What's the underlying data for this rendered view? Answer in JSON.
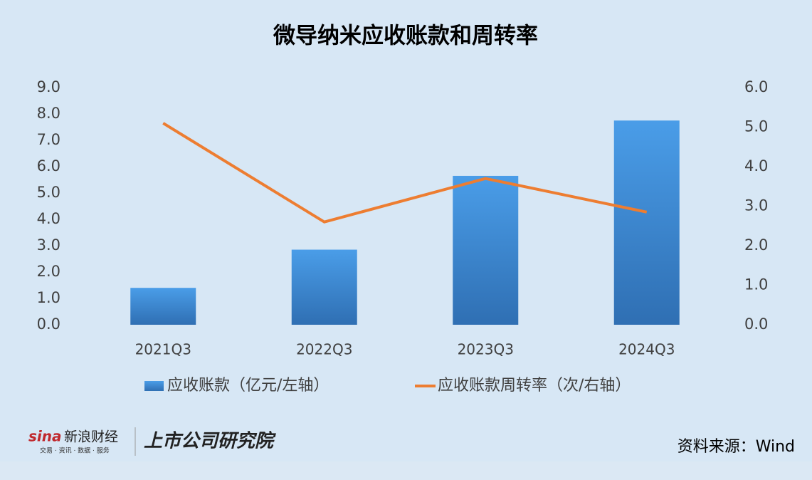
{
  "chart_data": {
    "type": "bar_line",
    "title": "微导纳米应收账款和周转率",
    "categories": [
      "2021Q3",
      "2022Q3",
      "2023Q3",
      "2024Q3"
    ],
    "series": [
      {
        "name": "应收账款（亿元/左轴）",
        "type": "bar",
        "color": "#3d8ad8",
        "values": [
          1.4,
          2.85,
          5.65,
          7.75
        ]
      },
      {
        "name": "应收账款周转率（次/右轴）",
        "type": "line",
        "axis": "y2",
        "color": "#ed7d31",
        "values": [
          5.1,
          2.6,
          3.7,
          2.85
        ]
      }
    ],
    "ylim": [
      0,
      9
    ],
    "yticks": [
      {
        "value": 0,
        "label": "0.0"
      },
      {
        "value": 1,
        "label": "1.0"
      },
      {
        "value": 2,
        "label": "2.0"
      },
      {
        "value": 3,
        "label": "3.0"
      },
      {
        "value": 4,
        "label": "4.0"
      },
      {
        "value": 5,
        "label": "5.0"
      },
      {
        "value": 6,
        "label": "6.0"
      },
      {
        "value": 7,
        "label": "7.0"
      },
      {
        "value": 8,
        "label": "8.0"
      },
      {
        "value": 9,
        "label": "9.0"
      }
    ],
    "y2lim": [
      0,
      6
    ],
    "y2ticks": [
      {
        "value": 0,
        "label": "0.0"
      },
      {
        "value": 1,
        "label": "1.0"
      },
      {
        "value": 2,
        "label": "2.0"
      },
      {
        "value": 3,
        "label": "3.0"
      },
      {
        "value": 4,
        "label": "4.0"
      },
      {
        "value": 5,
        "label": "5.0"
      },
      {
        "value": 6,
        "label": "6.0"
      }
    ],
    "grid": false,
    "legend": "bottom",
    "source": "资料来源：Wind"
  },
  "branding": {
    "logo": "sina",
    "name": "新浪财经",
    "services": "交易 · 资讯 · 数据 · 服务",
    "institute": "上市公司研究院"
  }
}
